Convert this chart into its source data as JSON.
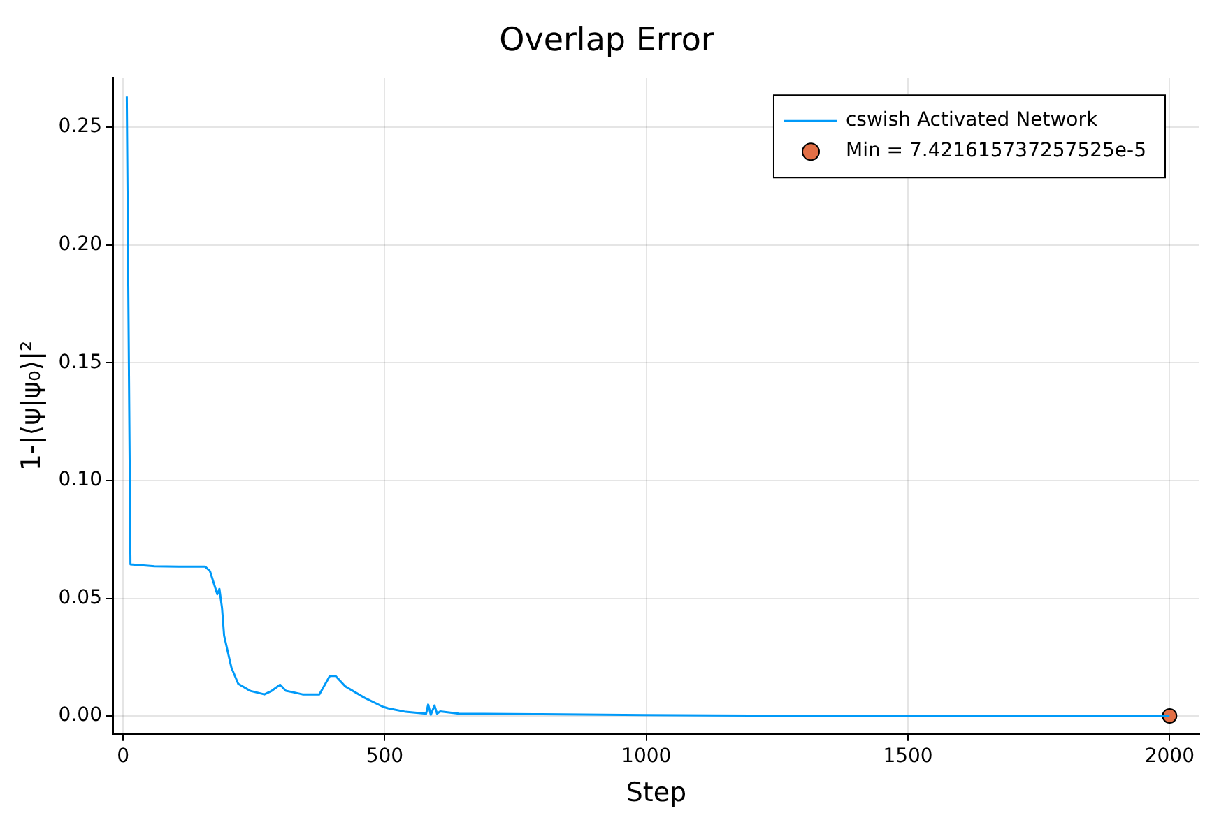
{
  "chart_data": {
    "type": "line",
    "title": "Overlap Error",
    "xlabel": "Step",
    "ylabel": "1-|⟨ψ|ψ₀⟩|²",
    "xlim": [
      -19,
      2057
    ],
    "ylim": [
      -0.0076,
      0.271
    ],
    "xticks": [
      0,
      500,
      1000,
      1500,
      2000
    ],
    "yticks": [
      {
        "value": 0,
        "label": "0.00"
      },
      {
        "value": 0.05,
        "label": "0.05"
      },
      {
        "value": 0.1,
        "label": "0.10"
      },
      {
        "value": 0.15,
        "label": "0.15"
      },
      {
        "value": 0.2,
        "label": "0.20"
      },
      {
        "value": 0.25,
        "label": "0.25"
      }
    ],
    "grid": true,
    "legend": "top right",
    "series": [
      {
        "name": "cswish Activated Network",
        "color": "#009af9",
        "marker": "none",
        "x": [
          7,
          14,
          60,
          120,
          157,
          166,
          180,
          184,
          189,
          193,
          207,
          220,
          243,
          270,
          284,
          300,
          311,
          325,
          343,
          375,
          395,
          406,
          424,
          461,
          497,
          506,
          540,
          579,
          583,
          588,
          595,
          600,
          606,
          642,
          800,
          996,
          1200,
          1500,
          1800,
          2000
        ],
        "values": [
          0.263,
          0.0644,
          0.0636,
          0.0634,
          0.0634,
          0.0615,
          0.0517,
          0.054,
          0.0459,
          0.0341,
          0.0205,
          0.0137,
          0.0107,
          0.0092,
          0.0107,
          0.0133,
          0.0107,
          0.0101,
          0.0092,
          0.0092,
          0.017,
          0.017,
          0.0127,
          0.0078,
          0.0039,
          0.0033,
          0.0018,
          0.001,
          0.0049,
          0.0005,
          0.0045,
          0.001,
          0.002,
          0.001,
          0.0008,
          0.0004,
          0.0002,
          0.0001,
          0.0001,
          0.0001
        ]
      },
      {
        "name": "Min = 7.421615737257525e-5",
        "type": "scatter",
        "color": "#e26f46",
        "marker": "circle",
        "x": [
          2000
        ],
        "values": [
          7.421615737257525e-05
        ]
      }
    ]
  }
}
